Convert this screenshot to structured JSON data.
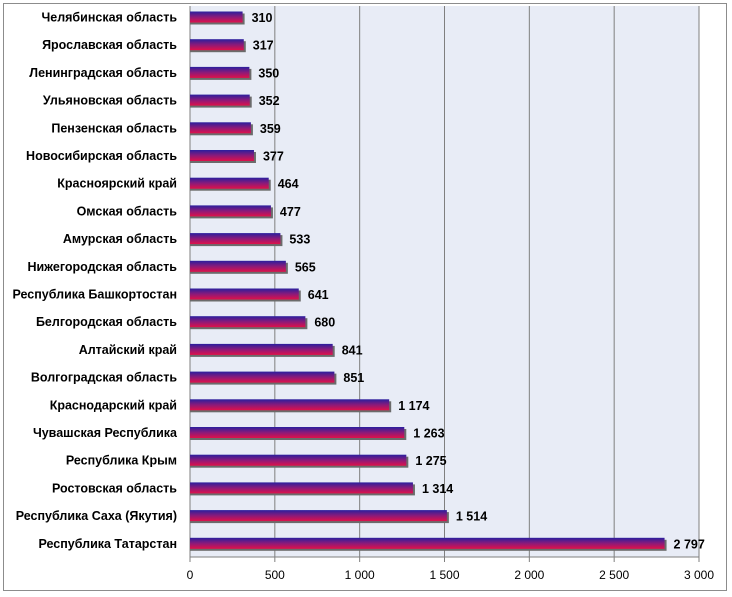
{
  "chart_data": {
    "type": "bar",
    "orientation": "horizontal",
    "title": "",
    "xlabel": "",
    "ylabel": "",
    "categories": [
      "Челябинская область",
      "Ярославская область",
      "Ленинградская область",
      "Ульяновская область",
      "Пензенская область",
      "Новосибирская область",
      "Красноярский край",
      "Омская область",
      "Амурская область",
      "Нижегородская область",
      "Республика Башкортостан",
      "Белгородская область",
      "Алтайский край",
      "Волгоградская область",
      "Краснодарский край",
      "Чувашская Республика",
      "Республика Крым",
      "Ростовская область",
      "Республика Саха (Якутия)",
      "Республика Татарстан"
    ],
    "values": [
      310,
      317,
      350,
      352,
      359,
      377,
      464,
      477,
      533,
      565,
      641,
      680,
      841,
      851,
      1174,
      1263,
      1275,
      1314,
      1514,
      2797
    ],
    "value_labels": [
      "310",
      "317",
      "350",
      "352",
      "359",
      "377",
      "464",
      "477",
      "533",
      "565",
      "641",
      "680",
      "841",
      "851",
      "1 174",
      "1 263",
      "1 275",
      "1 314",
      "1 514",
      "2 797"
    ],
    "xlim": [
      0,
      3000
    ],
    "x_ticks": [
      0,
      500,
      1000,
      1500,
      2000,
      2500,
      3000
    ],
    "x_tick_labels": [
      "0",
      "500",
      "1 000",
      "1 500",
      "2 000",
      "2 500",
      "3 000"
    ],
    "grid": "vertical",
    "legend": "none",
    "colors": {
      "bar_top": "#2a1f9e",
      "bar_bottom": "#e0104a",
      "plot_background": "#e8ecf6",
      "gridline": "#7f7f7f",
      "axis": "#7f7f7f"
    }
  }
}
